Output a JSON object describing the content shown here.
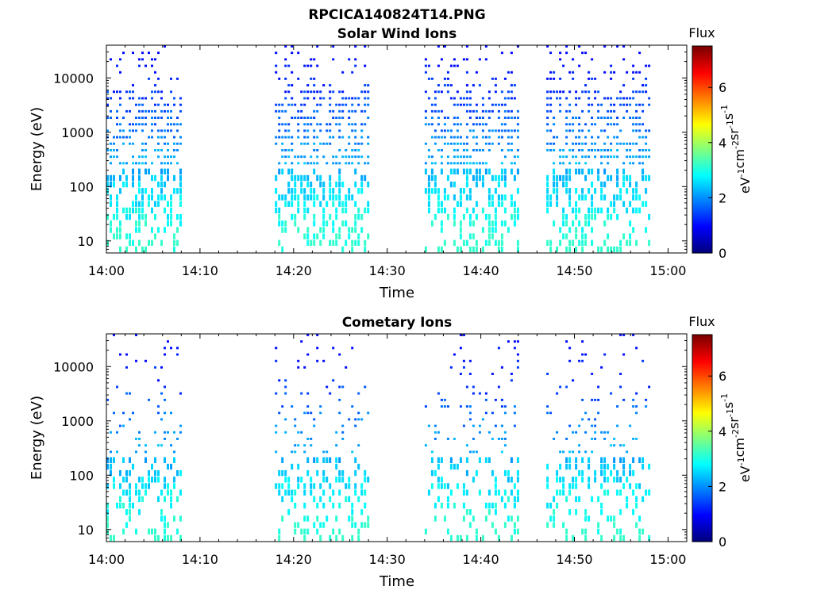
{
  "figure_title": "RPCICA140824T14.PNG",
  "colorbar": {
    "title": "Flux",
    "ticks": [
      "0",
      "2",
      "4",
      "6"
    ],
    "tick_values": [
      0,
      2,
      4,
      6
    ],
    "range": [
      0,
      7.5
    ],
    "unit_parts": [
      "eV",
      "-1",
      "cm",
      "-2",
      "sr",
      "-1",
      "s",
      "-1"
    ],
    "colormap": "jet"
  },
  "chart_data": [
    {
      "type": "heatmap",
      "title": "Solar Wind Ions",
      "xlabel": "Time",
      "ylabel": "Energy (eV)",
      "x_range_minutes": [
        0,
        62
      ],
      "xticks": [
        "14:00",
        "14:10",
        "14:20",
        "14:30",
        "14:40",
        "14:50",
        "15:00"
      ],
      "y_scale": "log",
      "ylim": [
        6,
        40000
      ],
      "yticks": [
        "10",
        "100",
        "1000",
        "10000"
      ],
      "activity_intervals": [
        "14:00-14:08",
        "14:18-14:28",
        "14:34-14:44",
        "14:47-14:58"
      ],
      "observations": [
        {
          "time": "14:00-14:08",
          "energy_range_eV": "10-40000",
          "flux_range": "1-3"
        },
        {
          "time": "14:18-14:28",
          "energy_range_eV": "10-30000",
          "flux_range": "1-3"
        },
        {
          "time": "14:34-14:44",
          "energy_range_eV": "10-20000",
          "flux_range": "1-3"
        },
        {
          "time": "14:47-14:58",
          "energy_range_eV": "10-30000",
          "flux_range": "1-3"
        }
      ]
    },
    {
      "type": "heatmap",
      "title": "Cometary Ions",
      "xlabel": "Time",
      "ylabel": "Energy (eV)",
      "x_range_minutes": [
        0,
        62
      ],
      "xticks": [
        "14:00",
        "14:10",
        "14:20",
        "14:30",
        "14:40",
        "14:50",
        "15:00"
      ],
      "y_scale": "log",
      "ylim": [
        6,
        40000
      ],
      "yticks": [
        "10",
        "100",
        "1000",
        "10000"
      ],
      "activity_intervals": [
        "14:00-14:08",
        "14:18-14:28",
        "14:34-14:44",
        "14:47-14:58"
      ],
      "observations": [
        {
          "time": "14:00-14:08",
          "energy_range_eV": "10-30000",
          "flux_range": "1-3"
        },
        {
          "time": "14:18-14:28",
          "energy_range_eV": "10-25000",
          "flux_range": "1-3"
        },
        {
          "time": "14:34-14:44",
          "energy_range_eV": "10-20000",
          "flux_range": "1-3"
        },
        {
          "time": "14:47-14:58",
          "energy_range_eV": "10-25000",
          "flux_range": "1-3"
        }
      ]
    }
  ]
}
